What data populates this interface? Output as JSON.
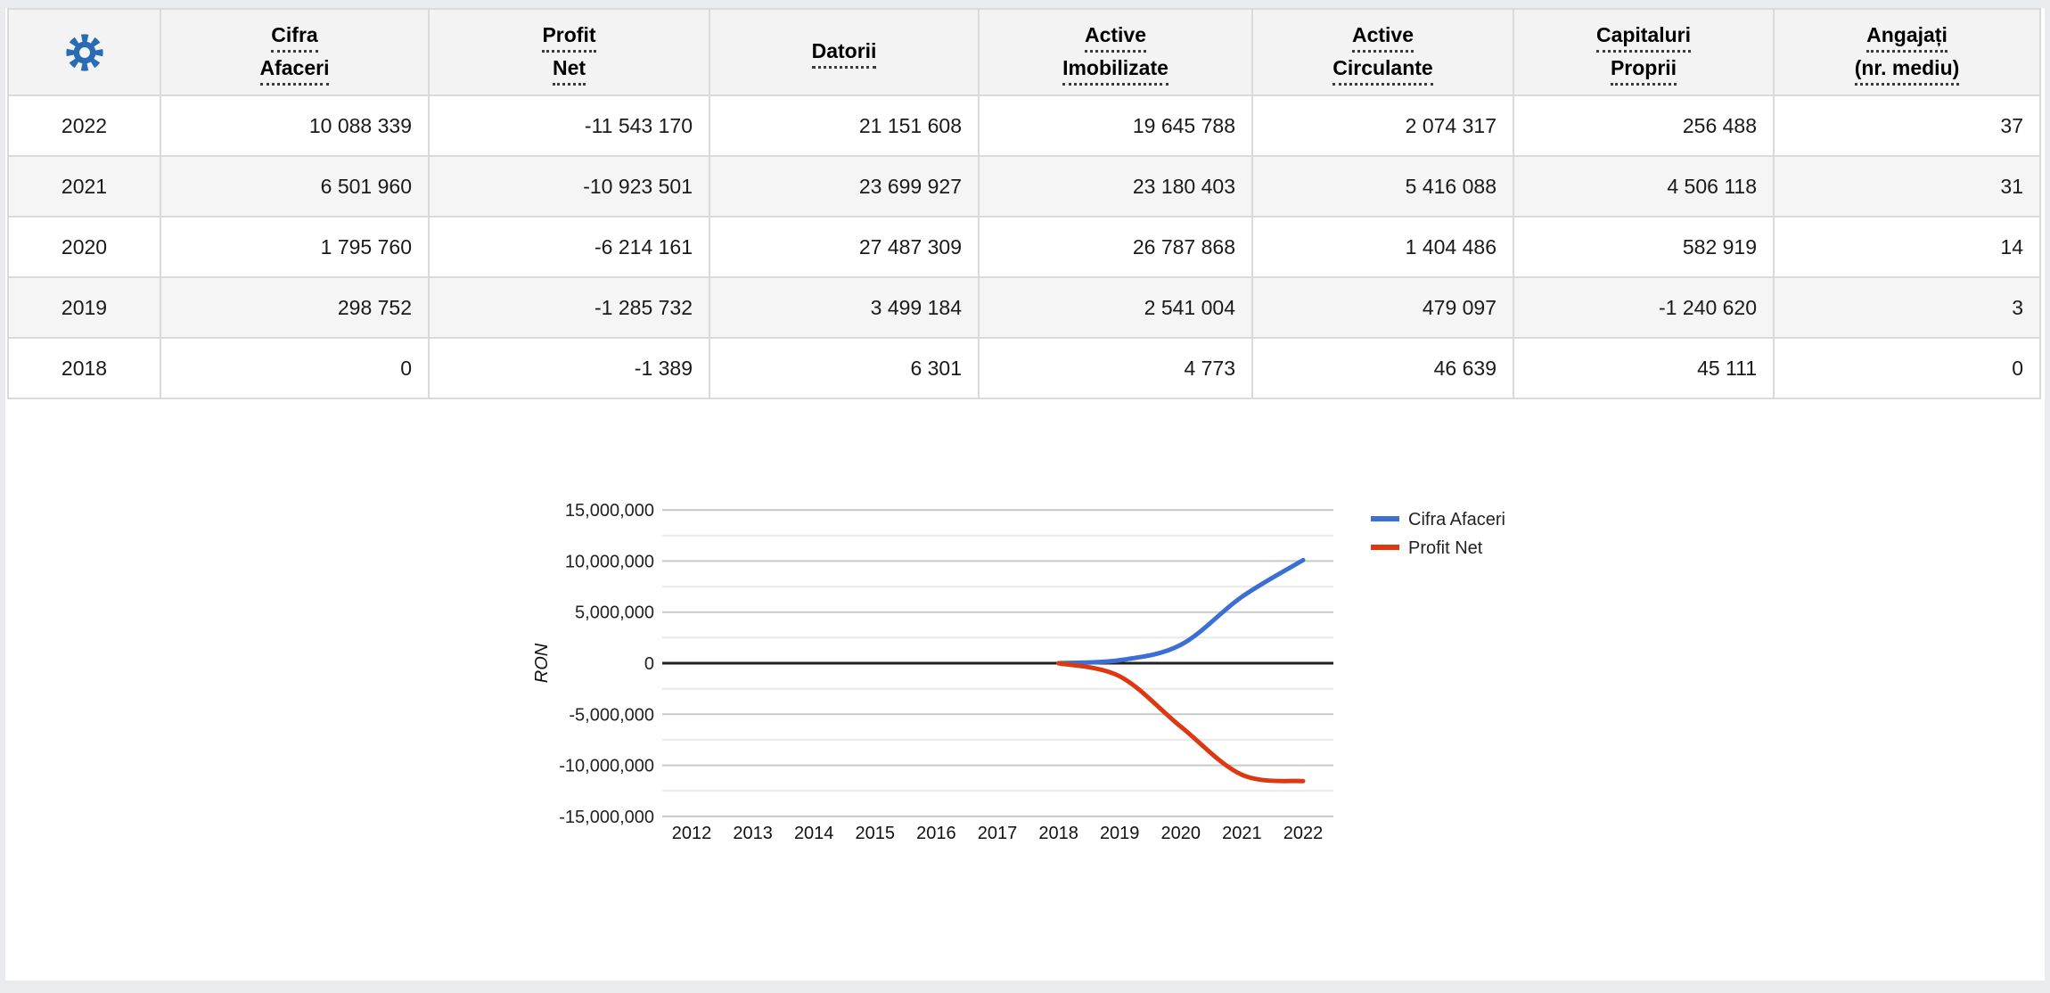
{
  "colors": {
    "accent": "#2a6cb4",
    "series_blue": "#3b6fd4",
    "series_red": "#dc3912"
  },
  "header": {
    "columns": [
      {
        "lines": [
          "Cifra",
          "Afaceri"
        ]
      },
      {
        "lines": [
          "Profit",
          "Net"
        ]
      },
      {
        "lines": [
          "Datorii"
        ]
      },
      {
        "lines": [
          "Active",
          "Imobilizate"
        ]
      },
      {
        "lines": [
          "Active",
          "Circulante"
        ]
      },
      {
        "lines": [
          "Capitaluri",
          "Proprii"
        ]
      },
      {
        "lines": [
          "Angajați",
          "(nr. mediu)"
        ]
      }
    ]
  },
  "table": {
    "rows": [
      {
        "year": "2022",
        "values": [
          "10 088 339",
          "-11 543 170",
          "21 151 608",
          "19 645 788",
          "2 074 317",
          "256 488",
          "37"
        ]
      },
      {
        "year": "2021",
        "values": [
          "6 501 960",
          "-10 923 501",
          "23 699 927",
          "23 180 403",
          "5 416 088",
          "4 506 118",
          "31"
        ]
      },
      {
        "year": "2020",
        "values": [
          "1 795 760",
          "-6 214 161",
          "27 487 309",
          "26 787 868",
          "1 404 486",
          "582 919",
          "14"
        ]
      },
      {
        "year": "2019",
        "values": [
          "298 752",
          "-1 285 732",
          "3 499 184",
          "2 541 004",
          "479 097",
          "-1 240 620",
          "3"
        ]
      },
      {
        "year": "2018",
        "values": [
          "0",
          "-1 389",
          "6 301",
          "4 773",
          "46 639",
          "45 111",
          "0"
        ]
      }
    ]
  },
  "chart_data": {
    "type": "line",
    "title": "",
    "xlabel": "",
    "ylabel": "RON",
    "x_categories": [
      "2012",
      "2013",
      "2014",
      "2015",
      "2016",
      "2017",
      "2018",
      "2019",
      "2020",
      "2021",
      "2022"
    ],
    "ylim": [
      -15000000,
      15000000
    ],
    "grid": true,
    "smooth": true,
    "legend_position": "right",
    "y_ticks": [
      {
        "value": 15000000,
        "label": "15,000,000"
      },
      {
        "value": 10000000,
        "label": "10,000,000"
      },
      {
        "value": 5000000,
        "label": "5,000,000"
      },
      {
        "value": 0,
        "label": "0"
      },
      {
        "value": -5000000,
        "label": "-5,000,000"
      },
      {
        "value": -10000000,
        "label": "-10,000,000"
      },
      {
        "value": -15000000,
        "label": "-15,000,000"
      }
    ],
    "y_minor_ticks": [
      12500000,
      7500000,
      2500000,
      -2500000,
      -7500000,
      -12500000
    ],
    "series": [
      {
        "name": "Cifra Afaceri",
        "color": "#3b6fd4",
        "points": [
          {
            "x": 2018,
            "y": 0
          },
          {
            "x": 2019,
            "y": 298752
          },
          {
            "x": 2020,
            "y": 1795760
          },
          {
            "x": 2021,
            "y": 6501960
          },
          {
            "x": 2022,
            "y": 10088339
          }
        ]
      },
      {
        "name": "Profit Net",
        "color": "#dc3912",
        "points": [
          {
            "x": 2018,
            "y": -1389
          },
          {
            "x": 2019,
            "y": -1285732
          },
          {
            "x": 2020,
            "y": -6214161
          },
          {
            "x": 2021,
            "y": -10923501
          },
          {
            "x": 2022,
            "y": -11543170
          }
        ]
      }
    ]
  }
}
